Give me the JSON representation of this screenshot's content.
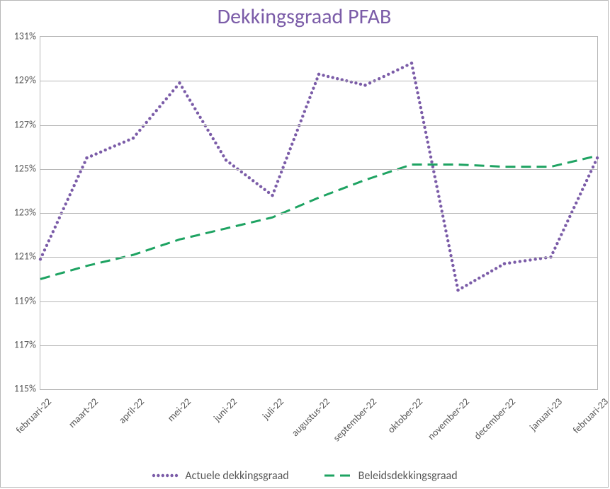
{
  "chart": {
    "type": "line",
    "title": "Dekkingsgraad  PFAB",
    "title_color": "#7b5ca8",
    "title_fontsize": 30,
    "background_color": "#ffffff",
    "border_color": "#b7b7b7",
    "grid_color": "#b7b7b7",
    "tick_label_color": "#595959",
    "tick_label_fontsize": 14,
    "legend_fontsize": 16,
    "y_axis": {
      "min": 115,
      "max": 131,
      "ticks": [
        115,
        117,
        119,
        121,
        123,
        125,
        127,
        129,
        131
      ],
      "tick_labels": [
        "115%",
        "117%",
        "119%",
        "121%",
        "123%",
        "125%",
        "127%",
        "129%",
        "131%"
      ]
    },
    "x_axis": {
      "categories": [
        "februari-22",
        "maart-22",
        "april-22",
        "mei-22",
        "juni-22",
        "juli-22",
        "augustus-22",
        "september-22",
        "oktober-22",
        "november-22",
        "december-22",
        "januari-23",
        "februari-23"
      ]
    },
    "series": [
      {
        "name": "Actuele dekkingsgraad",
        "color": "#7b5ca8",
        "dash": "dotted",
        "line_width": 4,
        "dot_radius": 2.2,
        "values": [
          120.9,
          125.5,
          126.4,
          128.9,
          125.4,
          123.8,
          129.3,
          128.8,
          129.8,
          119.5,
          120.7,
          121.0,
          125.5
        ]
      },
      {
        "name": "Beleidsdekkingsgraad",
        "color": "#1ea362",
        "dash": "dashed",
        "line_width": 3,
        "dash_pattern": "14 8",
        "values": [
          120.0,
          120.6,
          121.1,
          121.8,
          122.3,
          122.8,
          123.7,
          124.5,
          125.2,
          125.2,
          125.1,
          125.1,
          125.6
        ]
      }
    ],
    "legend": {
      "items": [
        {
          "label": "Actuele dekkingsgraad",
          "series_index": 0
        },
        {
          "label": "Beleidsdekkingsgraad",
          "series_index": 1
        }
      ]
    }
  }
}
